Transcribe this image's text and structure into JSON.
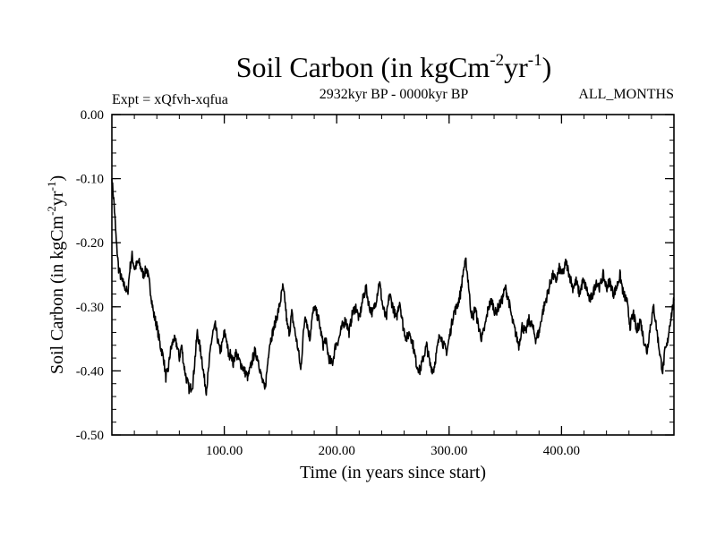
{
  "chart_data": {
    "type": "line",
    "title": {
      "main": "Soil Carbon (in kgCm",
      "sup1": "-2",
      "mid": "yr",
      "sup2": "-1",
      "end": ")"
    },
    "left_label": "Expt = xQfvh-xqfua",
    "center_label": "2932kyr BP - 0000kyr BP",
    "right_label": "ALL_MONTHS",
    "xlabel": "Time (in years since start)",
    "ylabel": {
      "main": "Soil Carbon (in kgCm",
      "sup1": "-2",
      "mid": "yr",
      "sup2": "-1",
      "end": ")"
    },
    "xlim": [
      0,
      500
    ],
    "ylim": [
      -0.5,
      0.0
    ],
    "x_ticks": [
      {
        "value": 100,
        "label": "100.00"
      },
      {
        "value": 200,
        "label": "200.00"
      },
      {
        "value": 300,
        "label": "300.00"
      },
      {
        "value": 400,
        "label": "400.00"
      }
    ],
    "y_ticks": [
      {
        "value": 0.0,
        "label": "0.00"
      },
      {
        "value": -0.1,
        "label": "-0.10"
      },
      {
        "value": -0.2,
        "label": "-0.20"
      },
      {
        "value": -0.3,
        "label": "-0.30"
      },
      {
        "value": -0.4,
        "label": "-0.40"
      },
      {
        "value": -0.5,
        "label": "-0.50"
      }
    ],
    "x_minor_step": 20,
    "y_minor_step": 0.02,
    "series": [
      {
        "name": "soil carbon",
        "color": "#000000",
        "keypoints": [
          [
            0,
            -0.1
          ],
          [
            2,
            -0.14
          ],
          [
            4,
            -0.2
          ],
          [
            6,
            -0.24
          ],
          [
            9,
            -0.26
          ],
          [
            12,
            -0.27
          ],
          [
            14,
            -0.28
          ],
          [
            16,
            -0.24
          ],
          [
            18,
            -0.22
          ],
          [
            20,
            -0.24
          ],
          [
            24,
            -0.23
          ],
          [
            28,
            -0.25
          ],
          [
            31,
            -0.24
          ],
          [
            34,
            -0.27
          ],
          [
            37,
            -0.31
          ],
          [
            40,
            -0.33
          ],
          [
            43,
            -0.36
          ],
          [
            46,
            -0.38
          ],
          [
            48,
            -0.41
          ],
          [
            50,
            -0.4
          ],
          [
            52,
            -0.37
          ],
          [
            55,
            -0.35
          ],
          [
            58,
            -0.36
          ],
          [
            60,
            -0.38
          ],
          [
            62,
            -0.36
          ],
          [
            64,
            -0.39
          ],
          [
            66,
            -0.41
          ],
          [
            69,
            -0.43
          ],
          [
            72,
            -0.42
          ],
          [
            74,
            -0.38
          ],
          [
            76,
            -0.34
          ],
          [
            78,
            -0.36
          ],
          [
            80,
            -0.38
          ],
          [
            82,
            -0.41
          ],
          [
            84,
            -0.43
          ],
          [
            86,
            -0.4
          ],
          [
            88,
            -0.36
          ],
          [
            90,
            -0.34
          ],
          [
            92,
            -0.33
          ],
          [
            94,
            -0.35
          ],
          [
            96,
            -0.37
          ],
          [
            98,
            -0.36
          ],
          [
            100,
            -0.34
          ],
          [
            102,
            -0.35
          ],
          [
            104,
            -0.38
          ],
          [
            106,
            -0.37
          ],
          [
            108,
            -0.39
          ],
          [
            110,
            -0.37
          ],
          [
            112,
            -0.38
          ],
          [
            115,
            -0.39
          ],
          [
            118,
            -0.4
          ],
          [
            121,
            -0.41
          ],
          [
            124,
            -0.39
          ],
          [
            127,
            -0.37
          ],
          [
            130,
            -0.38
          ],
          [
            133,
            -0.41
          ],
          [
            136,
            -0.43
          ],
          [
            138,
            -0.4
          ],
          [
            140,
            -0.36
          ],
          [
            143,
            -0.34
          ],
          [
            146,
            -0.32
          ],
          [
            149,
            -0.3
          ],
          [
            152,
            -0.27
          ],
          [
            154,
            -0.29
          ],
          [
            156,
            -0.33
          ],
          [
            158,
            -0.34
          ],
          [
            160,
            -0.31
          ],
          [
            162,
            -0.33
          ],
          [
            164,
            -0.35
          ],
          [
            166,
            -0.37
          ],
          [
            168,
            -0.4
          ],
          [
            170,
            -0.35
          ],
          [
            172,
            -0.31
          ],
          [
            174,
            -0.33
          ],
          [
            176,
            -0.35
          ],
          [
            178,
            -0.32
          ],
          [
            180,
            -0.3
          ],
          [
            182,
            -0.31
          ],
          [
            184,
            -0.32
          ],
          [
            186,
            -0.34
          ],
          [
            188,
            -0.36
          ],
          [
            190,
            -0.35
          ],
          [
            193,
            -0.38
          ],
          [
            196,
            -0.39
          ],
          [
            199,
            -0.36
          ],
          [
            202,
            -0.35
          ],
          [
            205,
            -0.33
          ],
          [
            208,
            -0.32
          ],
          [
            211,
            -0.34
          ],
          [
            214,
            -0.31
          ],
          [
            217,
            -0.3
          ],
          [
            220,
            -0.32
          ],
          [
            223,
            -0.29
          ],
          [
            226,
            -0.27
          ],
          [
            229,
            -0.3
          ],
          [
            232,
            -0.31
          ],
          [
            235,
            -0.29
          ],
          [
            238,
            -0.26
          ],
          [
            241,
            -0.3
          ],
          [
            244,
            -0.32
          ],
          [
            247,
            -0.28
          ],
          [
            250,
            -0.3
          ],
          [
            253,
            -0.32
          ],
          [
            256,
            -0.29
          ],
          [
            259,
            -0.33
          ],
          [
            262,
            -0.35
          ],
          [
            265,
            -0.34
          ],
          [
            268,
            -0.36
          ],
          [
            271,
            -0.39
          ],
          [
            274,
            -0.4
          ],
          [
            277,
            -0.38
          ],
          [
            280,
            -0.36
          ],
          [
            283,
            -0.39
          ],
          [
            286,
            -0.4
          ],
          [
            289,
            -0.37
          ],
          [
            292,
            -0.34
          ],
          [
            295,
            -0.36
          ],
          [
            298,
            -0.37
          ],
          [
            301,
            -0.34
          ],
          [
            304,
            -0.31
          ],
          [
            307,
            -0.3
          ],
          [
            310,
            -0.28
          ],
          [
            313,
            -0.24
          ],
          [
            315,
            -0.23
          ],
          [
            317,
            -0.26
          ],
          [
            319,
            -0.3
          ],
          [
            321,
            -0.32
          ],
          [
            323,
            -0.3
          ],
          [
            326,
            -0.33
          ],
          [
            329,
            -0.35
          ],
          [
            332,
            -0.33
          ],
          [
            335,
            -0.3
          ],
          [
            338,
            -0.29
          ],
          [
            341,
            -0.31
          ],
          [
            344,
            -0.3
          ],
          [
            347,
            -0.29
          ],
          [
            350,
            -0.27
          ],
          [
            353,
            -0.29
          ],
          [
            356,
            -0.32
          ],
          [
            359,
            -0.34
          ],
          [
            362,
            -0.36
          ],
          [
            365,
            -0.33
          ],
          [
            368,
            -0.34
          ],
          [
            371,
            -0.32
          ],
          [
            374,
            -0.33
          ],
          [
            377,
            -0.35
          ],
          [
            380,
            -0.34
          ],
          [
            383,
            -0.31
          ],
          [
            386,
            -0.29
          ],
          [
            389,
            -0.27
          ],
          [
            392,
            -0.25
          ],
          [
            395,
            -0.26
          ],
          [
            398,
            -0.24
          ],
          [
            401,
            -0.25
          ],
          [
            404,
            -0.23
          ],
          [
            407,
            -0.25
          ],
          [
            410,
            -0.27
          ],
          [
            413,
            -0.26
          ],
          [
            416,
            -0.28
          ],
          [
            419,
            -0.26
          ],
          [
            422,
            -0.27
          ],
          [
            425,
            -0.29
          ],
          [
            428,
            -0.28
          ],
          [
            431,
            -0.26
          ],
          [
            434,
            -0.27
          ],
          [
            437,
            -0.25
          ],
          [
            440,
            -0.27
          ],
          [
            443,
            -0.26
          ],
          [
            446,
            -0.28
          ],
          [
            449,
            -0.27
          ],
          [
            452,
            -0.25
          ],
          [
            455,
            -0.28
          ],
          [
            458,
            -0.29
          ],
          [
            461,
            -0.33
          ],
          [
            464,
            -0.31
          ],
          [
            467,
            -0.34
          ],
          [
            470,
            -0.32
          ],
          [
            473,
            -0.35
          ],
          [
            476,
            -0.37
          ],
          [
            479,
            -0.33
          ],
          [
            482,
            -0.3
          ],
          [
            485,
            -0.34
          ],
          [
            488,
            -0.38
          ],
          [
            490,
            -0.4
          ],
          [
            492,
            -0.37
          ],
          [
            494,
            -0.36
          ],
          [
            496,
            -0.33
          ],
          [
            498,
            -0.31
          ],
          [
            500,
            -0.29
          ]
        ]
      }
    ]
  }
}
